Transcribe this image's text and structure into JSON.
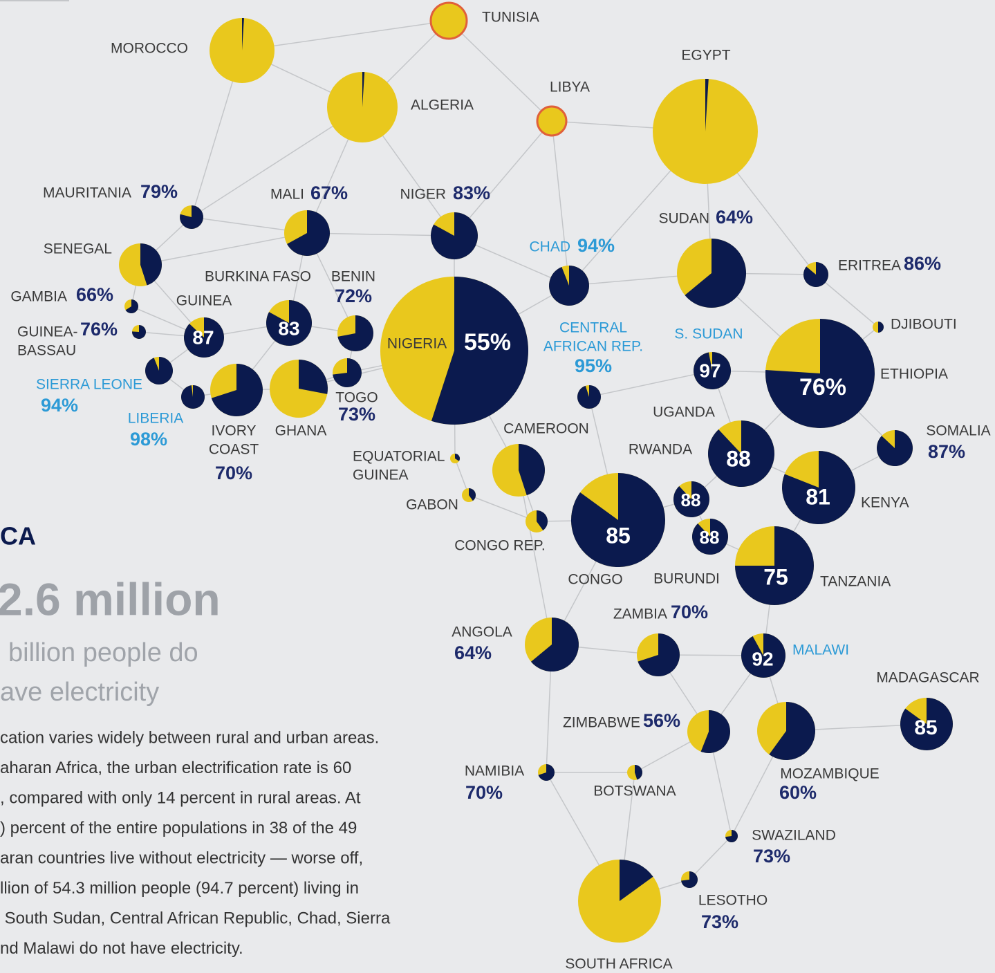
{
  "chart_data": {
    "type": "pie-network",
    "colors": {
      "unelectrified": "#0b1a4e",
      "electrified": "#e9c81d",
      "highlight": "#2c9ad6",
      "edge": "#c4c6c9"
    },
    "nodes": [
      {
        "name": "TUNISIA",
        "value": 0,
        "outline": "#e0603a"
      },
      {
        "name": "MOROCCO",
        "value": 1
      },
      {
        "name": "ALGERIA",
        "value": 1
      },
      {
        "name": "LIBYA",
        "value": 0,
        "outline": "#e0603a"
      },
      {
        "name": "EGYPT",
        "value": 1
      },
      {
        "name": "MAURITANIA",
        "value": 79,
        "value_label": "79%"
      },
      {
        "name": "MALI",
        "value": 67,
        "value_label": "67%"
      },
      {
        "name": "NIGER",
        "value": 83,
        "value_label": "83%"
      },
      {
        "name": "SUDAN",
        "value": 64,
        "value_label": "64%"
      },
      {
        "name": "CHAD",
        "value": 94,
        "value_label": "94%",
        "highlight": true
      },
      {
        "name": "ERITREA",
        "value": 86,
        "value_label": "86%"
      },
      {
        "name": "SENEGAL",
        "value": 45
      },
      {
        "name": "BURKINA FASO",
        "value": 83
      },
      {
        "name": "BENIN",
        "value": 72,
        "value_label": "72%"
      },
      {
        "name": "GAMBIA",
        "value": 66,
        "value_label": "66%"
      },
      {
        "name": "GUINEA",
        "value": 87
      },
      {
        "name": [
          "GUINEA-",
          "BASSAU"
        ],
        "value": 76,
        "value_label": "76%"
      },
      {
        "name": "SIERRA LEONE",
        "value": 94,
        "value_label": "94%",
        "highlight": true
      },
      {
        "name": "LIBERIA",
        "value": 98,
        "value_label": "98%",
        "highlight": true
      },
      {
        "name": [
          "IVORY",
          "COAST"
        ],
        "value": 70,
        "value_label": "70%"
      },
      {
        "name": "GHANA",
        "value": 28
      },
      {
        "name": "TOGO",
        "value": 73,
        "value_label": "73%"
      },
      {
        "name": "NIGERIA",
        "value": 55,
        "value_label": "55%"
      },
      {
        "name": [
          "CENTRAL",
          "AFRICAN REP."
        ],
        "value": 95,
        "value_label": "95%",
        "highlight": true
      },
      {
        "name": "S. SUDAN",
        "value": 97,
        "highlight": true
      },
      {
        "name": "ETHIOPIA",
        "value": 76,
        "value_label": "76%"
      },
      {
        "name": "DJIBOUTI",
        "value": 50
      },
      {
        "name": "UGANDA",
        "value": 88
      },
      {
        "name": "SOMALIA",
        "value": 87,
        "value_label": "87%"
      },
      {
        "name": "CAMEROON",
        "value": 45
      },
      {
        "name": [
          "EQUATORIAL",
          "GUINEA"
        ],
        "value": 34
      },
      {
        "name": "GABON",
        "value": 40
      },
      {
        "name": "CONGO REP.",
        "value": 40
      },
      {
        "name": "CONGO",
        "value": 85
      },
      {
        "name": "RWANDA",
        "value": 88
      },
      {
        "name": "BURUNDI",
        "value": 88
      },
      {
        "name": "KENYA",
        "value": 81
      },
      {
        "name": "TANZANIA",
        "value": 75
      },
      {
        "name": "ANGOLA",
        "value": 64,
        "value_label": "64%"
      },
      {
        "name": "ZAMBIA",
        "value": 70,
        "value_label": "70%"
      },
      {
        "name": "MALAWI",
        "value": 92,
        "highlight": true
      },
      {
        "name": "MADAGASCAR",
        "value": 85
      },
      {
        "name": "ZIMBABWE",
        "value": 56,
        "value_label": "56%"
      },
      {
        "name": "MOZAMBIQUE",
        "value": 60,
        "value_label": "60%"
      },
      {
        "name": "NAMIBIA",
        "value": 70,
        "value_label": "70%"
      },
      {
        "name": "BOTSWANA",
        "value": 45
      },
      {
        "name": "SWAZILAND",
        "value": 73,
        "value_label": "73%"
      },
      {
        "name": "LESOTHO",
        "value": 73,
        "value_label": "73%"
      },
      {
        "name": "SOUTH AFRICA",
        "value": 15
      }
    ],
    "heading": "CA",
    "big_number": "2.6 million",
    "subtitle": [
      "billion people do",
      "ave electricity"
    ],
    "body": [
      "cation varies widely between rural and urban areas.",
      "aharan Africa, the urban electrification rate is 60",
      ", compared with only 14 percent in rural areas. At",
      ") percent of the entire populations in 38 of the 49",
      "aran countries live without electricity — worse off,",
      "llion of 54.3 million people (94.7 percent) living in",
      " South Sudan, Central African Republic, Chad, Sierra",
      "nd Malawi do not have electricity."
    ]
  }
}
